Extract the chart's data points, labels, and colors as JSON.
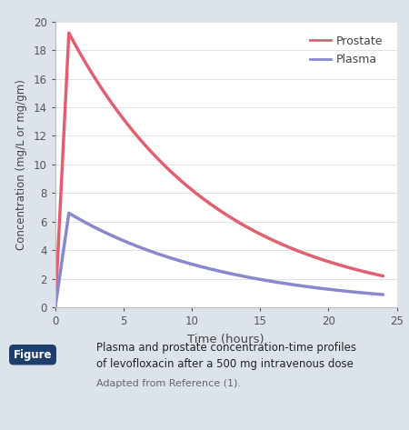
{
  "prostate_color": "#e06070",
  "plasma_color": "#8888cc",
  "background_color": "#dde3ea",
  "plot_background": "#ffffff",
  "xlabel": "Time (hours)",
  "ylabel": "Concentration (mg/L or mg/gm)",
  "xlim": [
    0,
    25
  ],
  "ylim": [
    0,
    20
  ],
  "xticks": [
    0,
    5,
    10,
    15,
    20,
    25
  ],
  "yticks": [
    0,
    2,
    4,
    6,
    8,
    10,
    12,
    14,
    16,
    18,
    20
  ],
  "legend_labels": [
    "Prostate",
    "Plasma"
  ],
  "figure_label": "Figure",
  "caption_line1": "Plasma and prostate concentration-time profiles",
  "caption_line2": "of levofloxacin after a 500 mg intravenous dose",
  "caption_line3": "Adapted from Reference (1).",
  "prostate_peak_time": 1.0,
  "prostate_peak_val": 19.2,
  "prostate_end_val": 2.2,
  "plasma_peak_time": 1.0,
  "plasma_peak_val": 6.6,
  "plasma_end_val": 0.9,
  "line_width": 2.5,
  "figure_label_bg": "#1e3f6e",
  "figure_label_color": "#ffffff"
}
